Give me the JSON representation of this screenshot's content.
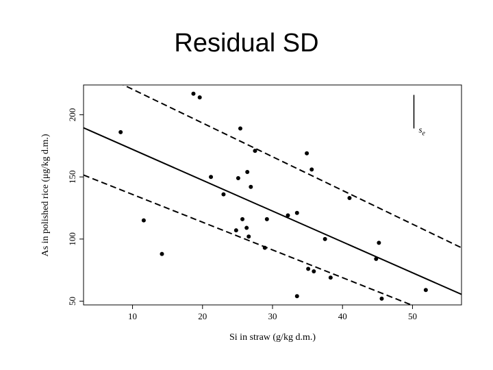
{
  "slide": {
    "title": "Residual SD"
  },
  "chart_data": {
    "type": "scatter",
    "xlabel": "Si in straw (g/kg d.m.)",
    "ylabel": "As in polished rice (μg/kg d.m.)",
    "xlim": [
      3,
      57
    ],
    "ylim": [
      47,
      224
    ],
    "xticks": [
      10,
      20,
      30,
      40,
      50
    ],
    "yticks": [
      50,
      100,
      150,
      200
    ],
    "points": [
      {
        "x": 8.3,
        "y": 186
      },
      {
        "x": 11.6,
        "y": 115
      },
      {
        "x": 14.2,
        "y": 88
      },
      {
        "x": 18.7,
        "y": 217
      },
      {
        "x": 19.6,
        "y": 214
      },
      {
        "x": 21.2,
        "y": 150
      },
      {
        "x": 23.0,
        "y": 136
      },
      {
        "x": 24.8,
        "y": 107
      },
      {
        "x": 25.1,
        "y": 149
      },
      {
        "x": 25.4,
        "y": 189
      },
      {
        "x": 25.7,
        "y": 116
      },
      {
        "x": 26.3,
        "y": 109
      },
      {
        "x": 26.4,
        "y": 154
      },
      {
        "x": 26.6,
        "y": 102
      },
      {
        "x": 26.9,
        "y": 142
      },
      {
        "x": 27.5,
        "y": 171
      },
      {
        "x": 28.9,
        "y": 93
      },
      {
        "x": 29.2,
        "y": 116
      },
      {
        "x": 32.2,
        "y": 119
      },
      {
        "x": 33.5,
        "y": 121
      },
      {
        "x": 33.5,
        "y": 54
      },
      {
        "x": 34.9,
        "y": 169
      },
      {
        "x": 35.1,
        "y": 76
      },
      {
        "x": 35.6,
        "y": 156
      },
      {
        "x": 35.9,
        "y": 74
      },
      {
        "x": 37.5,
        "y": 100
      },
      {
        "x": 38.3,
        "y": 69
      },
      {
        "x": 41.0,
        "y": 133
      },
      {
        "x": 44.8,
        "y": 84
      },
      {
        "x": 45.2,
        "y": 97
      },
      {
        "x": 45.6,
        "y": 52
      },
      {
        "x": 51.9,
        "y": 59
      }
    ],
    "fit_line": {
      "x": [
        3,
        57
      ],
      "y": [
        189.5,
        55.5
      ]
    },
    "band_upper": {
      "x": [
        3,
        57
      ],
      "y": [
        239.5,
        93
      ]
    },
    "band_lower": {
      "x": [
        3,
        57
      ],
      "y": [
        151.5,
        31
      ]
    },
    "se_bar": {
      "x": 50.2,
      "y": [
        189,
        216
      ]
    },
    "se_label": "s",
    "se_subscript": "e",
    "grid": false,
    "legend": "none"
  }
}
